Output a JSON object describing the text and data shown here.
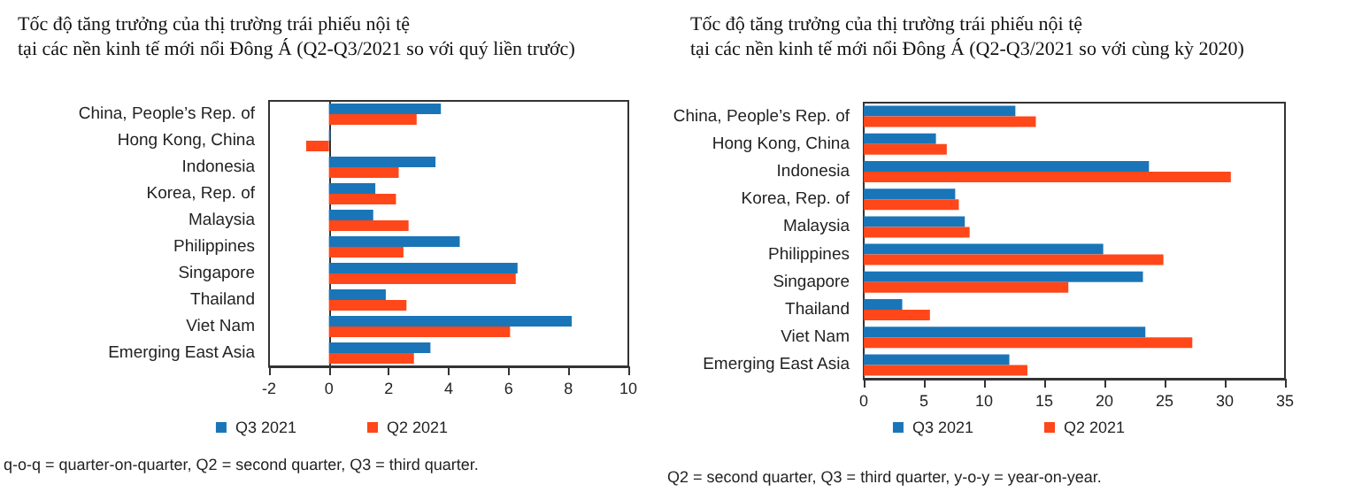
{
  "chart_data": [
    {
      "type": "bar",
      "orientation": "horizontal",
      "title": "Tốc độ tăng trưởng của thị trường trái phiếu nội tệ\ntại các nền kinh tế mới nổi Đông Á (Q2-Q3/2021 so với quý liền trước)",
      "categories": [
        "China, People’s Rep. of",
        "Hong Kong, China",
        "Indonesia",
        "Korea, Rep. of",
        "Malaysia",
        "Philippines",
        "Singapore",
        "Thailand",
        "Viet Nam",
        "Emerging East Asia"
      ],
      "series": [
        {
          "name": "Q3 2021",
          "color": "#1a75b8",
          "values": [
            3.74,
            0.05,
            3.56,
            1.55,
            1.48,
            4.37,
            6.3,
            1.9,
            8.11,
            3.39
          ]
        },
        {
          "name": "Q2 2021",
          "color": "#ff4719",
          "values": [
            2.93,
            -0.76,
            2.33,
            2.24,
            2.66,
            2.49,
            6.24,
            2.59,
            6.05,
            2.84
          ]
        }
      ],
      "xlim": [
        -2,
        10
      ],
      "xticks": [
        -2,
        0,
        2,
        4,
        6,
        8,
        10
      ],
      "grid": false,
      "legend": "bottom",
      "ref_lines": [
        {
          "axis": "x",
          "value": 0
        }
      ],
      "annotations": [
        "q-o-q = quarter-on-quarter, Q2 = second quarter, Q3 = third quarter."
      ]
    },
    {
      "type": "bar",
      "orientation": "horizontal",
      "title": "Tốc độ tăng trưởng của thị trường trái phiếu nội tệ\ntại các nền kinh tế mới nổi Đông Á (Q2-Q3/2021 so với cùng kỳ 2020)",
      "categories": [
        "China, People’s Rep. of",
        "Hong Kong, China",
        "Indonesia",
        "Korea, Rep. of",
        "Malaysia",
        "Philippines",
        "Singapore",
        "Thailand",
        "Viet Nam",
        "Emerging East Asia"
      ],
      "series": [
        {
          "name": "Q3 2021",
          "color": "#1a75b8",
          "values": [
            12.6,
            6.0,
            23.7,
            7.6,
            8.4,
            19.9,
            23.2,
            3.2,
            23.4,
            12.1
          ]
        },
        {
          "name": "Q2 2021",
          "color": "#ff4719",
          "values": [
            14.3,
            6.9,
            30.5,
            7.9,
            8.8,
            24.9,
            17.0,
            5.5,
            27.3,
            13.6
          ]
        }
      ],
      "xlim": [
        0,
        35
      ],
      "xticks": [
        0,
        5,
        10,
        15,
        20,
        25,
        30,
        35
      ],
      "grid": false,
      "legend": "bottom",
      "annotations": [
        "Q2 = second quarter, Q3 = third quarter, y-o-y = year-on-year."
      ]
    }
  ]
}
